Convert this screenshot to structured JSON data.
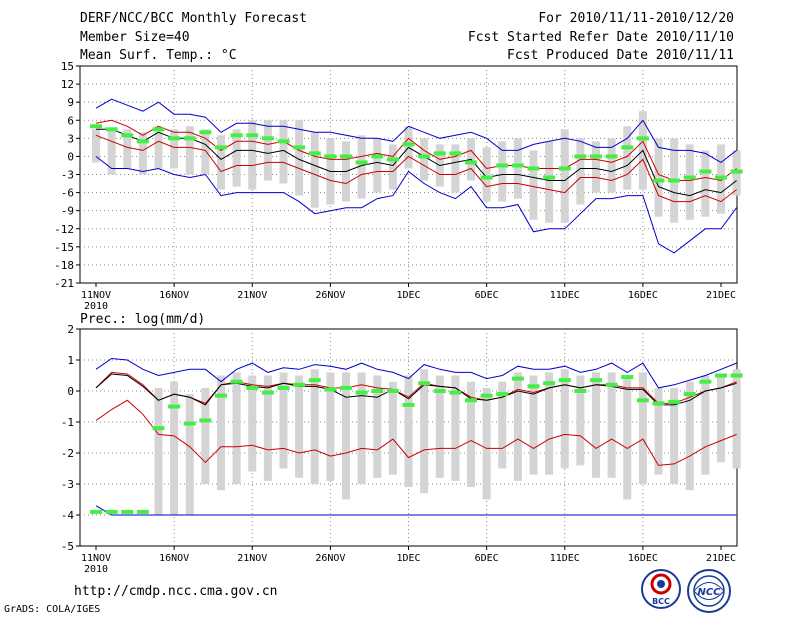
{
  "header": {
    "title": "DERF/NCC/BCC Monthly Forecast",
    "member_size": "Member Size=40",
    "variable": "Mean Surf. Temp.: °C",
    "period": "For 2010/11/11-2010/12/20",
    "started": "Fcst Started Refer Date 2010/11/10",
    "produced": "Fcst Produced Date 2010/11/11"
  },
  "footer": {
    "url": "http://cmdp.ncc.cma.gov.cn",
    "grads": "GrADS: COLA/IGES",
    "logo_bcc_text": "BCC",
    "logo_ncc_text": "NCC"
  },
  "colors": {
    "envelope": "#0000cc",
    "std": "#cc0000",
    "mean": "#000000",
    "obs": "#44ee44",
    "box": "#d4d4d4",
    "grid": "#888888",
    "baseline": "#000080"
  },
  "chart_data": [
    {
      "type": "line",
      "title": "Mean Surf. Temp.: °C",
      "xlabel": "",
      "ylabel": "°C",
      "x_start_day": 0,
      "ylim": [
        -21,
        15
      ],
      "yticks": [
        15,
        12,
        9,
        6,
        3,
        0,
        -3,
        -6,
        -9,
        -12,
        -15,
        -18,
        -21
      ],
      "xticks": [
        {
          "day": 0,
          "label": "11NOV",
          "sub": "2010"
        },
        {
          "day": 5,
          "label": "16NOV"
        },
        {
          "day": 10,
          "label": "21NOV"
        },
        {
          "day": 15,
          "label": "26NOV"
        },
        {
          "day": 20,
          "label": "1DEC"
        },
        {
          "day": 25,
          "label": "6DEC"
        },
        {
          "day": 30,
          "label": "11DEC"
        },
        {
          "day": 35,
          "label": "16DEC"
        },
        {
          "day": 40,
          "label": "21DEC"
        }
      ],
      "grid": true,
      "series": [
        {
          "name": "max",
          "values": [
            8,
            9.5,
            8.5,
            7.5,
            9,
            7,
            7,
            6.5,
            4,
            5.5,
            5.5,
            5,
            5,
            4.5,
            4,
            4,
            3.5,
            3,
            3,
            2.5,
            5,
            4,
            3,
            3.5,
            4,
            3,
            1,
            1,
            2,
            2.5,
            3,
            2.5,
            1.5,
            1.5,
            3,
            6,
            1.5,
            1,
            1,
            0.5,
            -1,
            1
          ]
        },
        {
          "name": "plus_std",
          "values": [
            5.5,
            6,
            5,
            3.5,
            5,
            4,
            4,
            3,
            1,
            2.5,
            2.5,
            2,
            2.5,
            1,
            0,
            -0.5,
            -0.5,
            0,
            0.5,
            0,
            3,
            1,
            -0.5,
            0,
            1,
            -2,
            -1.5,
            -1.5,
            -2,
            -2,
            -2,
            -0.5,
            -0.5,
            -1,
            0,
            2.5,
            -3,
            -4,
            -4,
            -3.5,
            -4,
            -2
          ]
        },
        {
          "name": "mean",
          "values": [
            4.5,
            4.5,
            3.5,
            2.5,
            4,
            3,
            3,
            2,
            -0.5,
            1,
            1,
            0.5,
            1,
            -0.5,
            -1.5,
            -2.5,
            -2.5,
            -1.5,
            -1,
            -1.5,
            1.5,
            0,
            -1.5,
            -1,
            -0.5,
            -3.5,
            -3,
            -3,
            -3.5,
            -4,
            -4,
            -2,
            -2,
            -2.5,
            -1.5,
            1,
            -5,
            -6,
            -6.5,
            -5.5,
            -6,
            -4
          ]
        },
        {
          "name": "minus_std",
          "values": [
            3.5,
            2.5,
            1.5,
            1,
            2.5,
            1.5,
            1.5,
            1,
            -2.5,
            -1.5,
            -1.5,
            -1,
            -1,
            -2,
            -3,
            -4,
            -4.5,
            -3,
            -2.5,
            -2.5,
            0,
            -1.5,
            -3,
            -3,
            -2,
            -5,
            -4.5,
            -4.5,
            -5,
            -5.5,
            -6,
            -3.5,
            -3.5,
            -4,
            -3,
            -0.5,
            -6.5,
            -7.5,
            -7.5,
            -6.5,
            -7.5,
            -5.5
          ]
        },
        {
          "name": "min",
          "values": [
            0,
            -2,
            -2,
            -2.5,
            -2,
            -3,
            -3.5,
            -3,
            -6.5,
            -6,
            -6,
            -6,
            -6,
            -7.5,
            -9.5,
            -9,
            -8.5,
            -8.5,
            -7,
            -6.5,
            -2.5,
            -4.5,
            -6,
            -7,
            -5,
            -8.5,
            -8.5,
            -8,
            -12.5,
            -12,
            -12,
            -9.5,
            -7,
            -7,
            -6.5,
            -6.5,
            -14.5,
            -16,
            -14,
            -12,
            -12,
            -8.5
          ]
        }
      ],
      "obs": [
        5,
        4.5,
        3.5,
        2.5,
        4.5,
        3,
        3,
        4,
        1.5,
        3.5,
        3.5,
        3,
        2.5,
        1.5,
        0.5,
        0,
        0,
        -1,
        0,
        -0.5,
        2,
        0,
        0.5,
        0.5,
        -1,
        -3.5,
        -1.5,
        -1.5,
        -2,
        -3.5,
        -2,
        0,
        0,
        0,
        1.5,
        3,
        -4,
        -4,
        -3.5,
        -2.5,
        -3.5,
        -2.5
      ],
      "boxes": [
        {
          "lo": -1,
          "hi": 4.5
        },
        {
          "lo": -3,
          "hi": 4.5
        },
        {
          "lo": -2,
          "hi": 4.5
        },
        {
          "lo": -3,
          "hi": 4
        },
        {
          "lo": -2,
          "hi": 5
        },
        {
          "lo": -2,
          "hi": 4.5
        },
        {
          "lo": -3,
          "hi": 5
        },
        {
          "lo": -3,
          "hi": 4.5
        },
        {
          "lo": -5.5,
          "hi": 3.5
        },
        {
          "lo": -5,
          "hi": 4.5
        },
        {
          "lo": -5.5,
          "hi": 6
        },
        {
          "lo": -4,
          "hi": 6
        },
        {
          "lo": -4.5,
          "hi": 6
        },
        {
          "lo": -6.5,
          "hi": 6
        },
        {
          "lo": -8.5,
          "hi": 4
        },
        {
          "lo": -8,
          "hi": 3
        },
        {
          "lo": -7.5,
          "hi": 2.5
        },
        {
          "lo": -7,
          "hi": 3.5
        },
        {
          "lo": -6,
          "hi": 3
        },
        {
          "lo": -5.5,
          "hi": 2
        },
        {
          "lo": -2,
          "hi": 5
        },
        {
          "lo": -4,
          "hi": 3
        },
        {
          "lo": -5,
          "hi": 2
        },
        {
          "lo": -6,
          "hi": 2
        },
        {
          "lo": -4,
          "hi": 3
        },
        {
          "lo": -7.5,
          "hi": 1.5
        },
        {
          "lo": -7.5,
          "hi": 2.5
        },
        {
          "lo": -7,
          "hi": 3
        },
        {
          "lo": -10.5,
          "hi": 1
        },
        {
          "lo": -11,
          "hi": 2.5
        },
        {
          "lo": -11,
          "hi": 4.5
        },
        {
          "lo": -8,
          "hi": 3
        },
        {
          "lo": -6,
          "hi": 2.5
        },
        {
          "lo": -6,
          "hi": 3
        },
        {
          "lo": -5.5,
          "hi": 5
        },
        {
          "lo": -5.5,
          "hi": 7.5
        },
        {
          "lo": -10,
          "hi": 3
        },
        {
          "lo": -11,
          "hi": 3
        },
        {
          "lo": -10.5,
          "hi": 2
        },
        {
          "lo": -10,
          "hi": 1
        },
        {
          "lo": -9.5,
          "hi": 2
        },
        {
          "lo": -6.5,
          "hi": 1
        }
      ]
    },
    {
      "type": "line",
      "title": "Prec.: log(mm/d)",
      "xlabel": "",
      "ylabel": "log(mm/d)",
      "ylim": [
        -5,
        2
      ],
      "yticks": [
        2,
        1,
        0,
        -1,
        -2,
        -3,
        -4,
        -5
      ],
      "xticks": [
        {
          "day": 0,
          "label": "11NOV",
          "sub": "2010"
        },
        {
          "day": 5,
          "label": "16NOV"
        },
        {
          "day": 10,
          "label": "21NOV"
        },
        {
          "day": 15,
          "label": "26NOV"
        },
        {
          "day": 20,
          "label": "1DEC"
        },
        {
          "day": 25,
          "label": "6DEC"
        },
        {
          "day": 30,
          "label": "11DEC"
        },
        {
          "day": 35,
          "label": "16DEC"
        },
        {
          "day": 40,
          "label": "21DEC"
        }
      ],
      "grid": true,
      "series": [
        {
          "name": "max",
          "values": [
            0.7,
            1.05,
            1,
            0.7,
            0.5,
            0.6,
            0.7,
            0.7,
            0.3,
            0.7,
            0.9,
            0.6,
            0.75,
            0.7,
            0.85,
            0.8,
            0.7,
            0.9,
            0.7,
            0.6,
            0.4,
            0.85,
            0.7,
            0.6,
            0.6,
            0.4,
            0.5,
            0.8,
            0.7,
            0.7,
            0.8,
            0.6,
            0.7,
            0.9,
            0.6,
            0.9,
            0.1,
            0.2,
            0.35,
            0.5,
            0.7,
            0.9
          ]
        },
        {
          "name": "plus_std",
          "values": [
            0.1,
            0.6,
            0.55,
            0.2,
            -0.3,
            -0.1,
            -0.2,
            -0.4,
            0.2,
            0.3,
            0.2,
            0.15,
            0.25,
            0.2,
            0.2,
            0.1,
            0.1,
            0.2,
            0.1,
            0.05,
            -0.2,
            0.25,
            0.15,
            0.1,
            -0.2,
            -0.3,
            -0.2,
            0.05,
            -0.05,
            0.1,
            0.2,
            0.1,
            0.2,
            0.2,
            0.1,
            0.1,
            -0.4,
            -0.4,
            -0.2,
            0.0,
            0.1,
            0.3
          ]
        },
        {
          "name": "mean",
          "values": [
            0.1,
            0.55,
            0.5,
            0.15,
            -0.3,
            -0.1,
            -0.2,
            -0.45,
            0.2,
            0.25,
            0.15,
            0.1,
            0.25,
            0.15,
            0.15,
            0.05,
            -0.2,
            -0.15,
            -0.2,
            0.05,
            -0.25,
            0.2,
            0.15,
            0.1,
            -0.25,
            -0.3,
            -0.2,
            0.0,
            -0.1,
            0.1,
            0.2,
            0.1,
            0.2,
            0.15,
            0.05,
            0.05,
            -0.45,
            -0.45,
            -0.3,
            0.0,
            0.1,
            0.25
          ]
        },
        {
          "name": "minus_std",
          "values": [
            -0.95,
            -0.6,
            -0.3,
            -0.75,
            -1.4,
            -1.45,
            -1.8,
            -2.3,
            -1.8,
            -1.8,
            -1.75,
            -1.9,
            -1.85,
            -2.0,
            -1.9,
            -2.1,
            -2.0,
            -1.85,
            -1.9,
            -1.55,
            -2.15,
            -1.9,
            -1.85,
            -1.85,
            -1.6,
            -1.85,
            -1.85,
            -1.55,
            -1.85,
            -1.55,
            -1.4,
            -1.45,
            -1.85,
            -1.55,
            -1.85,
            -1.55,
            -2.4,
            -2.35,
            -2.1,
            -1.8,
            -1.6,
            -1.4
          ]
        },
        {
          "name": "min",
          "values": [
            -3.7,
            -4,
            -4,
            -4,
            -4,
            -4,
            -4,
            -4,
            -4,
            -4,
            -4,
            -4,
            -4,
            -4,
            -4,
            -4,
            -4,
            -4,
            -4,
            -4,
            -4,
            -4,
            -4,
            -4,
            -4,
            -4,
            -4,
            -4,
            -4,
            -4,
            -4,
            -4,
            -4,
            -4,
            -4,
            -4,
            -4,
            -4,
            -4,
            -4,
            -4,
            -4
          ]
        }
      ],
      "obs": [
        -3.9,
        -3.9,
        -3.9,
        -3.9,
        -1.2,
        -0.5,
        -1.05,
        -0.95,
        -0.15,
        0.3,
        0.1,
        -0.05,
        0.1,
        0.2,
        0.35,
        0.05,
        0.1,
        -0.05,
        0.0,
        0.0,
        -0.45,
        0.25,
        0.0,
        -0.05,
        -0.3,
        -0.15,
        -0.1,
        0.4,
        0.15,
        0.25,
        0.35,
        0.0,
        0.35,
        0.2,
        0.45,
        -0.3,
        -0.4,
        -0.35,
        -0.1,
        0.3,
        0.5,
        0.5
      ],
      "boxes": [
        null,
        null,
        null,
        null,
        {
          "lo": -4,
          "hi": 0.1
        },
        {
          "lo": -4,
          "hi": 0.3
        },
        {
          "lo": -4,
          "hi": -0.1
        },
        {
          "lo": -3,
          "hi": 0.1
        },
        {
          "lo": -3.2,
          "hi": 0.5
        },
        {
          "lo": -3,
          "hi": 0.6
        },
        {
          "lo": -2.6,
          "hi": 0.5
        },
        {
          "lo": -2.9,
          "hi": 0.5
        },
        {
          "lo": -2.5,
          "hi": 0.6
        },
        {
          "lo": -2.8,
          "hi": 0.5
        },
        {
          "lo": -3,
          "hi": 0.7
        },
        {
          "lo": -2.9,
          "hi": 0.6
        },
        {
          "lo": -3.5,
          "hi": 0.6
        },
        {
          "lo": -3,
          "hi": 0.6
        },
        {
          "lo": -2.8,
          "hi": 0.5
        },
        {
          "lo": -2.7,
          "hi": 0.3
        },
        {
          "lo": -3.1,
          "hi": 0.5
        },
        {
          "lo": -3.3,
          "hi": 0.7
        },
        {
          "lo": -2.8,
          "hi": 0.5
        },
        {
          "lo": -2.9,
          "hi": 0.5
        },
        {
          "lo": -3.1,
          "hi": 0.3
        },
        {
          "lo": -3.5,
          "hi": 0.1
        },
        {
          "lo": -2.5,
          "hi": 0.3
        },
        {
          "lo": -2.9,
          "hi": 0.6
        },
        {
          "lo": -2.7,
          "hi": 0.5
        },
        {
          "lo": -2.7,
          "hi": 0.6
        },
        {
          "lo": -2.5,
          "hi": 0.7
        },
        {
          "lo": -2.4,
          "hi": 0.5
        },
        {
          "lo": -2.8,
          "hi": 0.6
        },
        {
          "lo": -2.8,
          "hi": 0.6
        },
        {
          "lo": -3.5,
          "hi": 0.5
        },
        {
          "lo": -3,
          "hi": 0.6
        },
        {
          "lo": -2.7,
          "hi": 0.1
        },
        {
          "lo": -3,
          "hi": 0.1
        },
        {
          "lo": -3.2,
          "hi": 0.3
        },
        {
          "lo": -2.7,
          "hi": 0.5
        },
        {
          "lo": -2.3,
          "hi": 0.5
        },
        {
          "lo": -2.5,
          "hi": 0.7
        }
      ]
    }
  ]
}
